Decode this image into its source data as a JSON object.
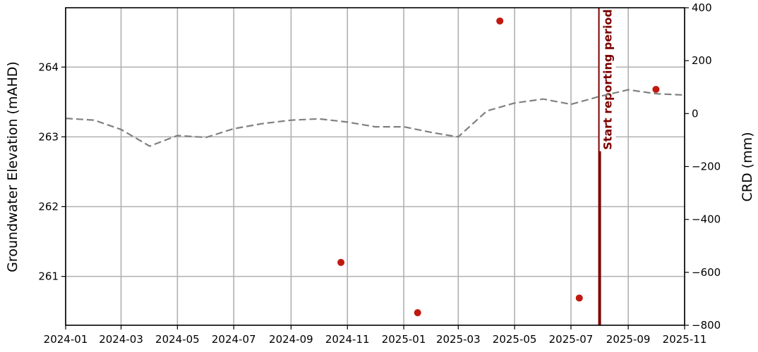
{
  "chart_data": {
    "type": "scatter",
    "title": "",
    "xlabel": "",
    "ylabel": "Groundwater Elevation (mAHD)",
    "ylabel_right": "CRD (mm)",
    "grid": true,
    "x_ticks": [
      "2024-01",
      "2024-03",
      "2024-05",
      "2024-07",
      "2024-09",
      "2024-11",
      "2025-01",
      "2025-03",
      "2025-05",
      "2025-07",
      "2025-09",
      "2025-11"
    ],
    "xlim": [
      "2024-01-01",
      "2025-11-01"
    ],
    "ylim": [
      260.3,
      264.85
    ],
    "y_ticks": [
      "261",
      "262",
      "263",
      "264"
    ],
    "ylim_right": [
      -800,
      400
    ],
    "y_ticks_right": [
      "−800",
      "−600",
      "−400",
      "−200",
      "0",
      "200",
      "400"
    ],
    "series": [
      {
        "axis": "left",
        "style": "scatter",
        "color": "#c0190f",
        "points": [
          {
            "x": "2024-10-25",
            "y": 261.2
          },
          {
            "x": "2025-01-16",
            "y": 260.48
          },
          {
            "x": "2025-04-15",
            "y": 264.66
          },
          {
            "x": "2025-07-10",
            "y": 260.69
          },
          {
            "x": "2025-10-01",
            "y": 263.68
          }
        ]
      },
      {
        "axis": "right",
        "style": "dashed-line",
        "color": "#808080",
        "points": [
          {
            "x": "2024-01-01",
            "y": -18
          },
          {
            "x": "2024-02-01",
            "y": -25
          },
          {
            "x": "2024-03-01",
            "y": -60
          },
          {
            "x": "2024-04-01",
            "y": -123
          },
          {
            "x": "2024-05-01",
            "y": -83
          },
          {
            "x": "2024-06-01",
            "y": -90
          },
          {
            "x": "2024-07-01",
            "y": -57
          },
          {
            "x": "2024-08-01",
            "y": -38
          },
          {
            "x": "2024-09-01",
            "y": -25
          },
          {
            "x": "2024-10-01",
            "y": -20
          },
          {
            "x": "2024-11-01",
            "y": -32
          },
          {
            "x": "2024-12-01",
            "y": -50
          },
          {
            "x": "2025-01-01",
            "y": -50
          },
          {
            "x": "2025-02-01",
            "y": -72
          },
          {
            "x": "2025-03-01",
            "y": -88
          },
          {
            "x": "2025-04-01",
            "y": 10
          },
          {
            "x": "2025-05-01",
            "y": 40
          },
          {
            "x": "2025-06-01",
            "y": 55
          },
          {
            "x": "2025-07-01",
            "y": 35
          },
          {
            "x": "2025-08-01",
            "y": 65
          },
          {
            "x": "2025-09-01",
            "y": 90
          },
          {
            "x": "2025-10-01",
            "y": 75
          },
          {
            "x": "2025-11-01",
            "y": 70
          }
        ]
      }
    ],
    "vline": {
      "x": "2025-08-01",
      "color": "#7b0000",
      "label": "Start reporting period"
    }
  }
}
